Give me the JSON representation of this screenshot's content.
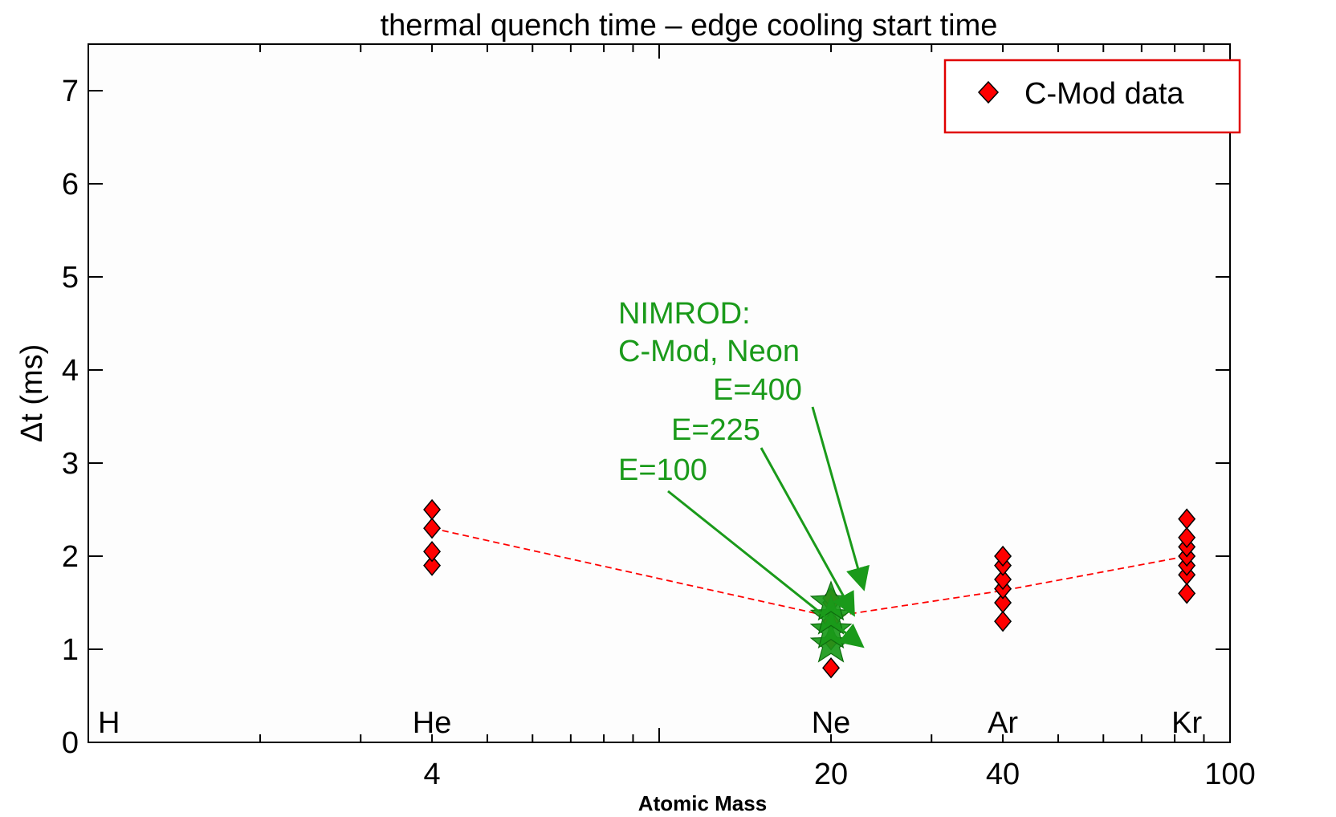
{
  "chart_data": {
    "type": "scatter",
    "title": "thermal quench time – edge cooling start time",
    "xlabel": "Atomic Mass",
    "ylabel": "Δt (ms)",
    "xscale": "log",
    "xlim": [
      1,
      100
    ],
    "ylim": [
      0,
      7.5
    ],
    "x_ticks": [
      4,
      20,
      40,
      100
    ],
    "y_ticks": [
      0,
      1,
      2,
      3,
      4,
      5,
      6,
      7
    ],
    "grid": false,
    "legend_position": "top-right",
    "element_labels": [
      {
        "label": "H",
        "x": 1
      },
      {
        "label": "He",
        "x": 4
      },
      {
        "label": "Ne",
        "x": 20
      },
      {
        "label": "Ar",
        "x": 40
      },
      {
        "label": "Kr",
        "x": 84
      }
    ],
    "series": [
      {
        "name": "C-Mod data",
        "marker": "diamond",
        "color": "#ff0000",
        "points": [
          {
            "x": 4,
            "y": 1.9
          },
          {
            "x": 4,
            "y": 2.05
          },
          {
            "x": 4,
            "y": 2.3
          },
          {
            "x": 4,
            "y": 2.5
          },
          {
            "x": 20,
            "y": 0.8
          },
          {
            "x": 20,
            "y": 1.1
          },
          {
            "x": 20,
            "y": 1.3
          },
          {
            "x": 20,
            "y": 1.5
          },
          {
            "x": 20,
            "y": 1.55
          },
          {
            "x": 40,
            "y": 1.3
          },
          {
            "x": 40,
            "y": 1.5
          },
          {
            "x": 40,
            "y": 1.65
          },
          {
            "x": 40,
            "y": 1.75
          },
          {
            "x": 40,
            "y": 1.9
          },
          {
            "x": 40,
            "y": 2.0
          },
          {
            "x": 84,
            "y": 1.6
          },
          {
            "x": 84,
            "y": 1.8
          },
          {
            "x": 84,
            "y": 1.9
          },
          {
            "x": 84,
            "y": 2.0
          },
          {
            "x": 84,
            "y": 2.1
          },
          {
            "x": 84,
            "y": 2.2
          },
          {
            "x": 84,
            "y": 2.4
          }
        ]
      },
      {
        "marker": "dashed-line",
        "color": "#ff0000",
        "points": [
          {
            "x": 4,
            "y": 2.3
          },
          {
            "x": 20,
            "y": 1.35
          },
          {
            "x": 40,
            "y": 1.63
          },
          {
            "x": 84,
            "y": 2.0
          }
        ]
      },
      {
        "marker": "star",
        "color": "#1a9a1a",
        "points": [
          {
            "x": 20,
            "y": 1.05
          },
          {
            "x": 20,
            "y": 1.2
          },
          {
            "x": 20,
            "y": 1.35
          },
          {
            "x": 20,
            "y": 1.5
          }
        ]
      }
    ],
    "annotations": {
      "color": "#1a9a1a",
      "header_lines": [
        "NIMROD:",
        "C-Mod, Neon"
      ],
      "items": [
        {
          "text": "E=400",
          "y": 1.5
        },
        {
          "text": "E=225",
          "y": 1.35
        },
        {
          "text": "E=100",
          "y": 1.15
        }
      ]
    }
  }
}
